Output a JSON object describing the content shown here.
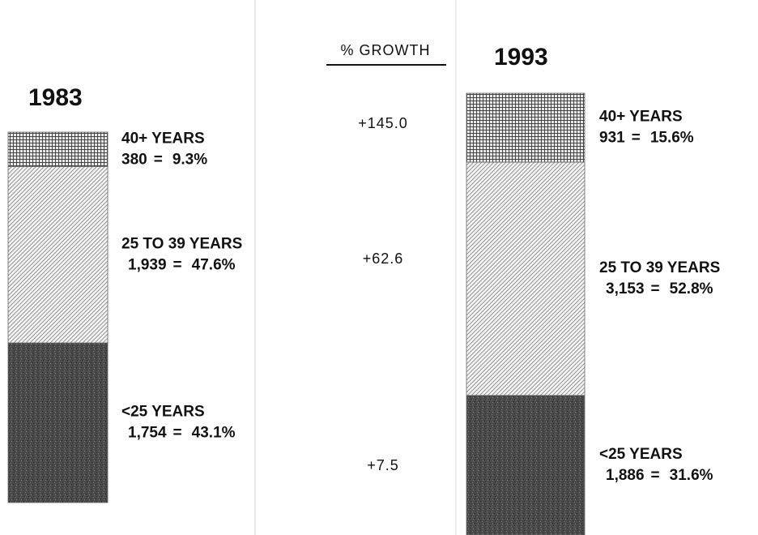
{
  "chart_data": {
    "type": "bar",
    "stacked": true,
    "categories": [
      "1983",
      "1993"
    ],
    "separator": "=",
    "series": [
      {
        "name": "40+ YEARS",
        "pattern": "crosshatch",
        "color": "#555555",
        "values": [
          9.3,
          15.6
        ],
        "value_labels": [
          "9.3%",
          "15.6%"
        ],
        "counts": [
          380,
          931
        ],
        "count_labels": [
          "380",
          "931"
        ]
      },
      {
        "name": "25 TO 39 YEARS",
        "pattern": "diagonal",
        "color": "#777777",
        "values": [
          47.6,
          52.8
        ],
        "value_labels": [
          "47.6%",
          "52.8%"
        ],
        "counts": [
          1939,
          3153
        ],
        "count_labels": [
          "1,939",
          "3,153"
        ]
      },
      {
        "name": "<25 YEARS",
        "pattern": "speckle",
        "color": "#3a3a3a",
        "values": [
          43.1,
          31.6
        ],
        "value_labels": [
          "43.1%",
          "31.6%"
        ],
        "counts": [
          1754,
          1886
        ],
        "count_labels": [
          "1,754",
          "1,886"
        ]
      }
    ],
    "growth_title": "% GROWTH",
    "growth": [
      145.0,
      62.6,
      7.5
    ],
    "growth_labels": [
      "+145.0",
      "+62.6",
      "+7.5"
    ]
  }
}
